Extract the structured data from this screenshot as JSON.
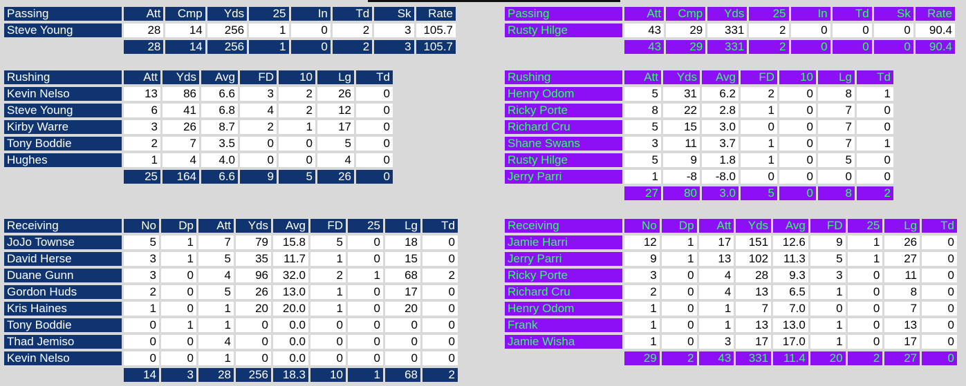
{
  "colors": {
    "home_bg": "#0f3470",
    "home_text": "#ffffff",
    "away_bg": "#8d0ff5",
    "away_text": "#33ff66",
    "page_bg": "#d9d9d9"
  },
  "home": {
    "passing": {
      "title": "Passing",
      "headers": [
        "Att",
        "Cmp",
        "Yds",
        "25",
        "In",
        "Td",
        "Sk",
        "Rate"
      ],
      "rows": [
        {
          "name": "Steve Young",
          "values": [
            "28",
            "14",
            "256",
            "1",
            "0",
            "2",
            "3",
            "105.7"
          ]
        }
      ],
      "totals": [
        "28",
        "14",
        "256",
        "1",
        "0",
        "2",
        "3",
        "105.7"
      ]
    },
    "rushing": {
      "title": "Rushing",
      "headers": [
        "Att",
        "Yds",
        "Avg",
        "FD",
        "10",
        "Lg",
        "Td"
      ],
      "rows": [
        {
          "name": "Kevin Nelso",
          "values": [
            "13",
            "86",
            "6.6",
            "3",
            "2",
            "26",
            "0"
          ]
        },
        {
          "name": "Steve Young",
          "values": [
            "6",
            "41",
            "6.8",
            "4",
            "2",
            "12",
            "0"
          ]
        },
        {
          "name": "Kirby Warre",
          "values": [
            "3",
            "26",
            "8.7",
            "2",
            "1",
            "17",
            "0"
          ]
        },
        {
          "name": "Tony Boddie",
          "values": [
            "2",
            "7",
            "3.5",
            "0",
            "0",
            "5",
            "0"
          ]
        },
        {
          "name": "Hughes",
          "values": [
            "1",
            "4",
            "4.0",
            "0",
            "0",
            "4",
            "0"
          ]
        }
      ],
      "totals": [
        "25",
        "164",
        "6.6",
        "9",
        "5",
        "26",
        "0"
      ]
    },
    "receiving": {
      "title": "Receiving",
      "headers": [
        "No",
        "Dp",
        "Att",
        "Yds",
        "Avg",
        "FD",
        "25",
        "Lg",
        "Td"
      ],
      "rows": [
        {
          "name": "JoJo Townse",
          "values": [
            "5",
            "1",
            "7",
            "79",
            "15.8",
            "5",
            "0",
            "18",
            "0"
          ]
        },
        {
          "name": "David Herse",
          "values": [
            "3",
            "1",
            "5",
            "35",
            "11.7",
            "1",
            "0",
            "15",
            "0"
          ]
        },
        {
          "name": "Duane Gunn",
          "values": [
            "3",
            "0",
            "4",
            "96",
            "32.0",
            "2",
            "1",
            "68",
            "2"
          ]
        },
        {
          "name": "Gordon Huds",
          "values": [
            "2",
            "0",
            "5",
            "26",
            "13.0",
            "1",
            "0",
            "17",
            "0"
          ]
        },
        {
          "name": "Kris Haines",
          "values": [
            "1",
            "0",
            "1",
            "20",
            "20.0",
            "1",
            "0",
            "20",
            "0"
          ]
        },
        {
          "name": "Tony Boddie",
          "values": [
            "0",
            "1",
            "1",
            "0",
            "0.0",
            "0",
            "0",
            "0",
            "0"
          ]
        },
        {
          "name": "Thad Jemiso",
          "values": [
            "0",
            "0",
            "4",
            "0",
            "0.0",
            "0",
            "0",
            "0",
            "0"
          ]
        },
        {
          "name": "Kevin Nelso",
          "values": [
            "0",
            "0",
            "1",
            "0",
            "0.0",
            "0",
            "0",
            "0",
            "0"
          ]
        }
      ],
      "totals": [
        "14",
        "3",
        "28",
        "256",
        "18.3",
        "10",
        "1",
        "68",
        "2"
      ]
    }
  },
  "away": {
    "passing": {
      "title": "Passing",
      "headers": [
        "Att",
        "Cmp",
        "Yds",
        "25",
        "In",
        "Td",
        "Sk",
        "Rate"
      ],
      "rows": [
        {
          "name": "Rusty Hilge",
          "values": [
            "43",
            "29",
            "331",
            "2",
            "0",
            "0",
            "0",
            "90.4"
          ]
        }
      ],
      "totals": [
        "43",
        "29",
        "331",
        "2",
        "0",
        "0",
        "0",
        "90.4"
      ]
    },
    "rushing": {
      "title": "Rushing",
      "headers": [
        "Att",
        "Yds",
        "Avg",
        "FD",
        "10",
        "Lg",
        "Td"
      ],
      "rows": [
        {
          "name": "Henry Odom",
          "values": [
            "5",
            "31",
            "6.2",
            "2",
            "0",
            "8",
            "1"
          ]
        },
        {
          "name": "Ricky Porte",
          "values": [
            "8",
            "22",
            "2.8",
            "1",
            "0",
            "7",
            "0"
          ]
        },
        {
          "name": "Richard Cru",
          "values": [
            "5",
            "15",
            "3.0",
            "0",
            "0",
            "7",
            "0"
          ]
        },
        {
          "name": "Shane Swans",
          "values": [
            "3",
            "11",
            "3.7",
            "1",
            "0",
            "7",
            "1"
          ]
        },
        {
          "name": "Rusty Hilge",
          "values": [
            "5",
            "9",
            "1.8",
            "1",
            "0",
            "5",
            "0"
          ]
        },
        {
          "name": "Jerry Parri",
          "values": [
            "1",
            "-8",
            "-8.0",
            "0",
            "0",
            "0",
            "0"
          ]
        }
      ],
      "totals": [
        "27",
        "80",
        "3.0",
        "5",
        "0",
        "8",
        "2"
      ]
    },
    "receiving": {
      "title": "Receiving",
      "headers": [
        "No",
        "Dp",
        "Att",
        "Yds",
        "Avg",
        "FD",
        "25",
        "Lg",
        "Td"
      ],
      "rows": [
        {
          "name": "Jamie Harri",
          "values": [
            "12",
            "1",
            "17",
            "151",
            "12.6",
            "9",
            "1",
            "26",
            "0"
          ]
        },
        {
          "name": "Jerry Parri",
          "values": [
            "9",
            "1",
            "13",
            "102",
            "11.3",
            "5",
            "1",
            "27",
            "0"
          ]
        },
        {
          "name": "Ricky Porte",
          "values": [
            "3",
            "0",
            "4",
            "28",
            "9.3",
            "3",
            "0",
            "11",
            "0"
          ]
        },
        {
          "name": "Richard Cru",
          "values": [
            "2",
            "0",
            "4",
            "13",
            "6.5",
            "1",
            "0",
            "8",
            "0"
          ]
        },
        {
          "name": "Henry Odom",
          "values": [
            "1",
            "0",
            "1",
            "7",
            "7.0",
            "0",
            "0",
            "7",
            "0"
          ]
        },
        {
          "name": "Frank",
          "values": [
            "1",
            "0",
            "1",
            "13",
            "13.0",
            "1",
            "0",
            "13",
            "0"
          ]
        },
        {
          "name": "Jamie Wisha",
          "values": [
            "1",
            "0",
            "3",
            "17",
            "17.0",
            "1",
            "0",
            "17",
            "0"
          ]
        }
      ],
      "totals": [
        "29",
        "2",
        "43",
        "331",
        "11.4",
        "20",
        "2",
        "27",
        "0"
      ]
    }
  }
}
